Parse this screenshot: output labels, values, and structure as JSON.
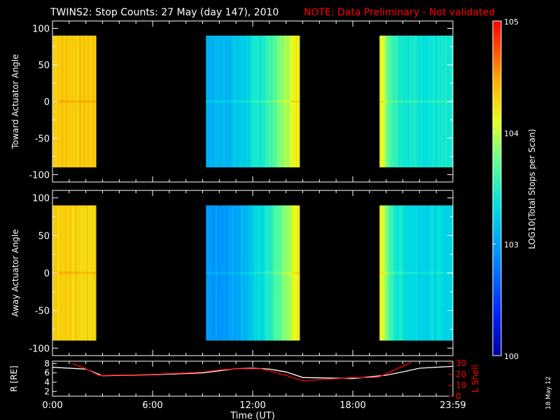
{
  "title": {
    "main": "TWINS2: Stop Counts: 27 May (day 147), 2010",
    "note": "NOTE: Data Preliminary - Not validated"
  },
  "date_stamp": "18 May 12",
  "colors": {
    "background": "#000000",
    "axis": "#ffffff",
    "note": "#ff0000",
    "r_line": "#ffffff",
    "lshell_line": "#ff0000"
  },
  "chart_data": [
    {
      "type": "heatmap",
      "name": "panel-toward",
      "ylabel": "Toward Actuator Angle",
      "xlim": [
        0,
        24
      ],
      "ylim": [
        -110,
        110
      ],
      "data_ylim": [
        -90,
        90
      ],
      "yticks": [
        -100,
        -50,
        0,
        50,
        100
      ],
      "segments": [
        {
          "start": 0.0,
          "end": 2.6,
          "base_log": 4.35
        },
        {
          "start": 9.2,
          "end": 14.8,
          "base_log": 3.1,
          "ramp_to_log": 4.25
        },
        {
          "start": 19.6,
          "end": 24.0,
          "base_log": 3.4,
          "edge_log": 4.3
        }
      ]
    },
    {
      "type": "heatmap",
      "name": "panel-away",
      "ylabel": "Away Actuator Angle",
      "xlim": [
        0,
        24
      ],
      "ylim": [
        -110,
        110
      ],
      "data_ylim": [
        -90,
        90
      ],
      "yticks": [
        -100,
        -50,
        0,
        50,
        100
      ],
      "segments": [
        {
          "start": 0.0,
          "end": 2.6,
          "base_log": 4.3
        },
        {
          "start": 9.2,
          "end": 14.8,
          "base_log": 2.95,
          "ramp_to_log": 4.2
        },
        {
          "start": 19.6,
          "end": 24.0,
          "base_log": 3.3,
          "edge_log": 4.3
        }
      ]
    },
    {
      "type": "line",
      "name": "panel-orbit",
      "xlabel": "Time (UT)",
      "xticks": [
        "0:00",
        "6:00",
        "12:00",
        "18:00",
        "23:59"
      ],
      "xtick_values": [
        0,
        6,
        12,
        18,
        24
      ],
      "left_axis": {
        "label": "R [RE]",
        "ylim": [
          1,
          8.5
        ],
        "yticks": [
          2,
          4,
          6,
          8
        ]
      },
      "right_axis": {
        "label": "L Shell",
        "ylim": [
          0,
          32
        ],
        "yticks": [
          0,
          10,
          20,
          30
        ]
      },
      "series": [
        {
          "axis": "left",
          "x": [
            0,
            2,
            3,
            6,
            9,
            11,
            12,
            13,
            14,
            15,
            18,
            20,
            21,
            22,
            24
          ],
          "y": [
            7.2,
            6.8,
            5.4,
            5.6,
            6.0,
            6.9,
            7.0,
            6.8,
            6.2,
            5.0,
            4.8,
            5.5,
            6.2,
            7.0,
            7.4
          ]
        },
        {
          "axis": "right",
          "x": [
            1.2,
            2,
            2.8,
            6,
            9,
            10,
            11,
            12.5,
            14,
            15,
            18,
            19.5,
            20.5,
            21.5
          ],
          "y": [
            30,
            25,
            19,
            20,
            22,
            24,
            25,
            25,
            19,
            14,
            17,
            17,
            24,
            31
          ]
        }
      ]
    }
  ],
  "colorbar": {
    "label": "LOG10(Total Stops per Scan)",
    "log_range": [
      2,
      5
    ],
    "ticks": [
      {
        "log": 5,
        "label": "105"
      },
      {
        "log": 4,
        "label": "104"
      },
      {
        "log": 3,
        "label": "103"
      },
      {
        "log": 2,
        "label": "100"
      }
    ]
  }
}
